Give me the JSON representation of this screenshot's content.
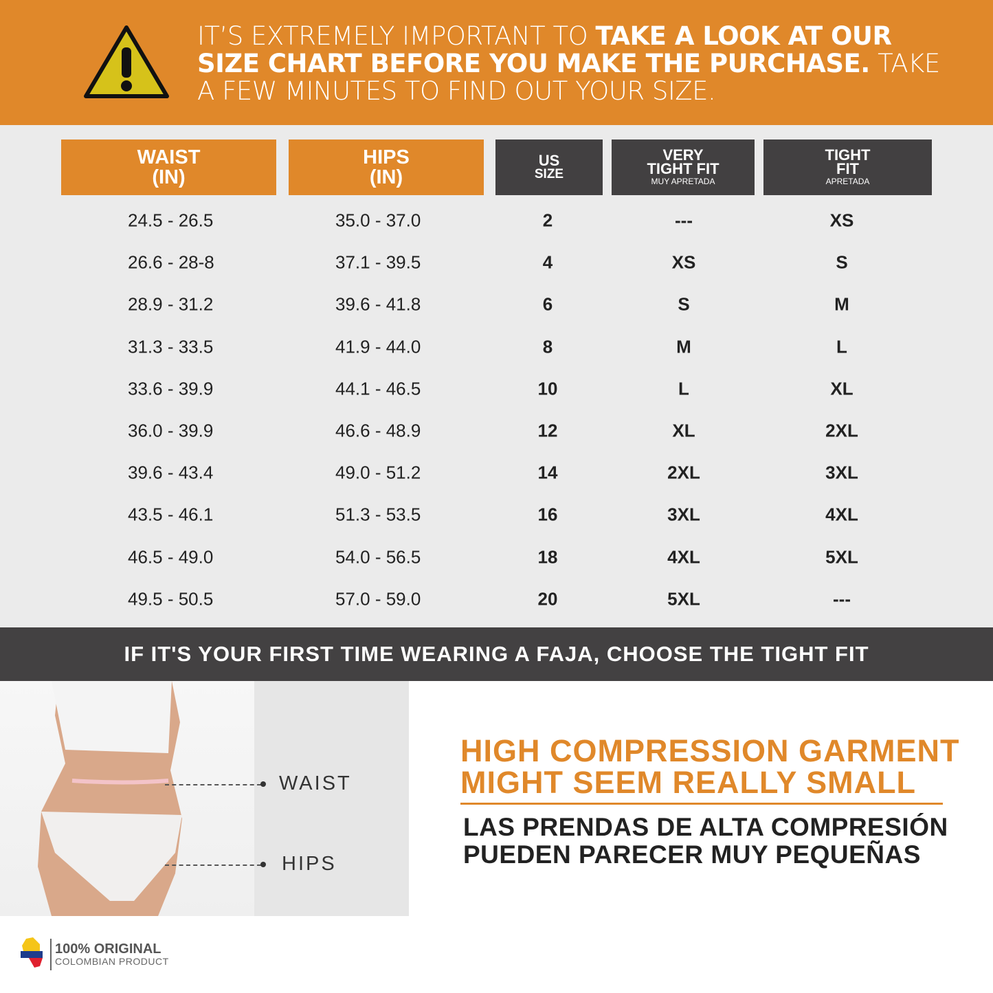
{
  "banner": {
    "part1": "IT’S EXTREMELY IMPORTANT TO ",
    "bold": "TAKE A LOOK AT OUR SIZE CHART BEFORE YOU MAKE THE PURCHASE.",
    "part2": " TAKE A FEW MINUTES TO FIND OUT YOUR SIZE.",
    "icon": "warning-icon"
  },
  "table": {
    "headers": [
      {
        "line1": "WAIST",
        "line2": "(IN)"
      },
      {
        "line1": "HIPS",
        "line2": "(IN)"
      },
      {
        "line1": "US",
        "line2": "SIZE"
      },
      {
        "line1": "VERY",
        "line2": "TIGHT FIT",
        "sub": "MUY APRETADA"
      },
      {
        "line1": "TIGHT",
        "line2": "FIT",
        "sub": "APRETADA"
      }
    ],
    "rows": [
      [
        "24.5 - 26.5",
        "35.0 - 37.0",
        "2",
        "---",
        "XS"
      ],
      [
        "26.6 - 28-8",
        "37.1 - 39.5",
        "4",
        "XS",
        "S"
      ],
      [
        "28.9 - 31.2",
        "39.6 - 41.8",
        "6",
        "S",
        "M"
      ],
      [
        "31.3 - 33.5",
        "41.9 - 44.0",
        "8",
        "M",
        "L"
      ],
      [
        "33.6 - 39.9",
        "44.1 - 46.5",
        "10",
        "L",
        "XL"
      ],
      [
        "36.0 - 39.9",
        "46.6 - 48.9",
        "12",
        "XL",
        "2XL"
      ],
      [
        "39.6 - 43.4",
        "49.0 - 51.2",
        "14",
        "2XL",
        "3XL"
      ],
      [
        "43.5 - 46.1",
        "51.3 - 53.5",
        "16",
        "3XL",
        "4XL"
      ],
      [
        "46.5 - 49.0",
        "54.0 - 56.5",
        "18",
        "4XL",
        "5XL"
      ],
      [
        "49.5 - 50.5",
        "57.0 - 59.0",
        "20",
        "5XL",
        "---"
      ]
    ]
  },
  "note": "IF IT'S YOUR FIRST TIME WEARING A FAJA, CHOOSE THE TIGHT FIT",
  "measure": {
    "waist": "WAIST",
    "hips": "HIPS"
  },
  "compression": {
    "en1": "HIGH COMPRESSION GARMENT",
    "en2": "MIGHT SEEM REALLY SMALL",
    "es1": "LAS PRENDAS DE ALTA COMPRESIÓN",
    "es2": "PUEDEN PARECER MUY PEQUEÑAS"
  },
  "footer": {
    "line1": "100% ORIGINAL",
    "line2": "COLOMBIAN PRODUCT"
  },
  "colors": {
    "orange": "#e0882a",
    "dark": "#424041",
    "bg": "#ebebeb"
  }
}
